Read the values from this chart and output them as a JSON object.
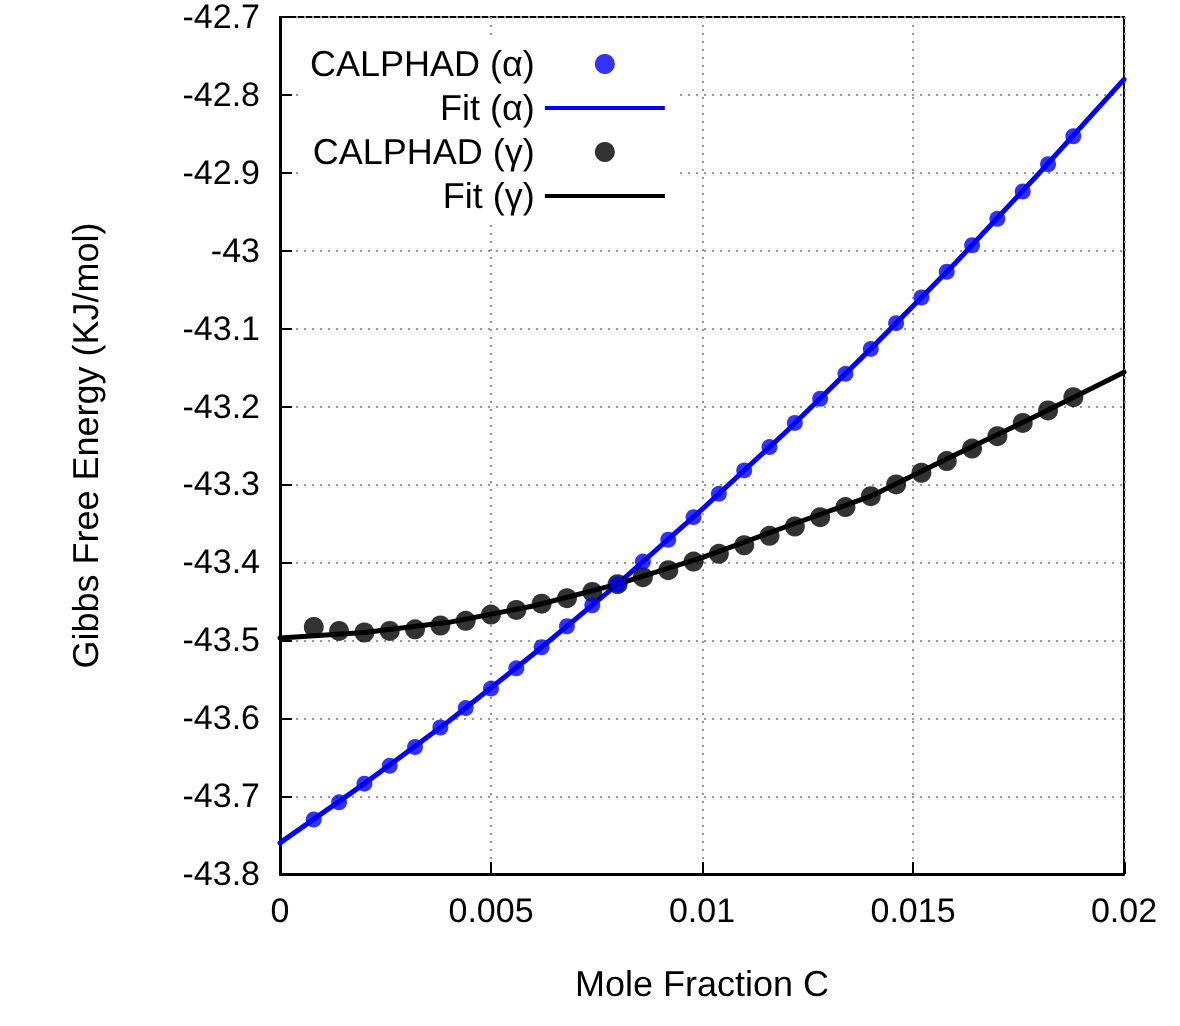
{
  "chart_data": {
    "type": "scatter",
    "xlabel": "Mole Fraction C",
    "ylabel": "Gibbs Free Energy (KJ/mol)",
    "xlim": [
      0,
      0.02
    ],
    "xticks": [
      0,
      0.005,
      0.01,
      0.015,
      0.02
    ],
    "ylim": [
      -43.8,
      -42.7
    ],
    "yticks": [
      -43.8,
      -43.7,
      -43.6,
      -43.5,
      -43.4,
      -43.3,
      -43.2,
      -43.1,
      -43,
      -42.9,
      -42.8,
      -42.7
    ],
    "grid": true,
    "legend": "top left",
    "series": [
      {
        "name": "CALPHAD (α)",
        "marker": "circle",
        "color": "#0000ff",
        "x": [
          0.0008,
          0.0014,
          0.002,
          0.0026,
          0.0032,
          0.0038,
          0.0044,
          0.005,
          0.0056,
          0.0062,
          0.0068,
          0.0074,
          0.008,
          0.0086,
          0.0092,
          0.0098,
          0.0104,
          0.011,
          0.0116,
          0.0122,
          0.0128,
          0.0134,
          0.014,
          0.0146,
          0.0152,
          0.0158,
          0.0164,
          0.017,
          0.0176,
          0.0182,
          0.0188
        ],
        "values": [
          -43.73,
          -43.708,
          -43.684,
          -43.661,
          -43.637,
          -43.612,
          -43.587,
          -43.562,
          -43.536,
          -43.509,
          -43.482,
          -43.455,
          -43.428,
          -43.399,
          -43.371,
          -43.342,
          -43.312,
          -43.282,
          -43.252,
          -43.221,
          -43.19,
          -43.158,
          -43.126,
          -43.093,
          -43.06,
          -43.027,
          -42.993,
          -42.959,
          -42.924,
          -42.889,
          -42.853
        ]
      },
      {
        "name": "Fit (α)",
        "type": "line",
        "marker": "none",
        "line_style": "solid",
        "color": "#0000ff",
        "x": [
          0,
          0.002,
          0.004,
          0.006,
          0.008,
          0.01,
          0.012,
          0.014,
          0.016,
          0.018,
          0.02
        ],
        "values": [
          -43.76,
          -43.684,
          -43.604,
          -43.518,
          -43.428,
          -43.332,
          -43.232,
          -43.126,
          -43.016,
          -42.9,
          -42.78
        ]
      },
      {
        "name": "CALPHAD (γ)",
        "marker": "circle",
        "color": "#000000",
        "x": [
          0.0008,
          0.0014,
          0.002,
          0.0026,
          0.0032,
          0.0038,
          0.0044,
          0.005,
          0.0056,
          0.0062,
          0.0068,
          0.0074,
          0.008,
          0.0086,
          0.0092,
          0.0098,
          0.0104,
          0.011,
          0.0116,
          0.0122,
          0.0128,
          0.0134,
          0.014,
          0.0146,
          0.0152,
          0.0158,
          0.0164,
          0.017,
          0.0176,
          0.0182,
          0.0188
        ],
        "values": [
          -43.483,
          -43.488,
          -43.49,
          -43.488,
          -43.486,
          -43.481,
          -43.475,
          -43.467,
          -43.461,
          -43.453,
          -43.446,
          -43.438,
          -43.428,
          -43.419,
          -43.41,
          -43.399,
          -43.389,
          -43.378,
          -43.366,
          -43.354,
          -43.342,
          -43.329,
          -43.315,
          -43.3,
          -43.285,
          -43.27,
          -43.254,
          -43.238,
          -43.221,
          -43.205,
          -43.188
        ]
      },
      {
        "name": "Fit (γ)",
        "type": "line",
        "marker": "none",
        "line_style": "solid",
        "color": "#000000",
        "x": [
          0,
          0.002,
          0.004,
          0.006,
          0.008,
          0.01,
          0.012,
          0.014,
          0.016,
          0.018,
          0.02
        ],
        "values": [
          -43.497,
          -43.49,
          -43.477,
          -43.456,
          -43.428,
          -43.394,
          -43.354,
          -43.315,
          -43.262,
          -43.21,
          -43.156
        ]
      }
    ]
  }
}
